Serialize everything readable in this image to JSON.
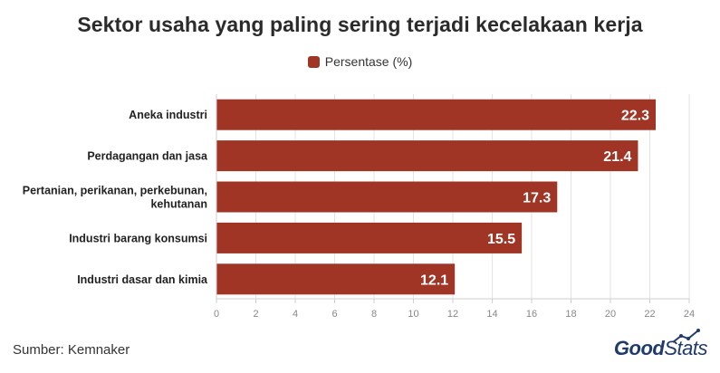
{
  "colors": {
    "bar": "#a03526",
    "grid": "#e3e3e3",
    "axis": "#cfcfcf",
    "tick": "#888888"
  },
  "brand": {
    "logo_good": "Good",
    "logo_stats": "Stats",
    "icon": "trend-chart-icon"
  },
  "source_text": "Sumber: Kemnaker",
  "chart_data": {
    "type": "bar",
    "orientation": "horizontal",
    "title": "Sektor usaha yang paling sering terjadi kecelakaan kerja",
    "legend": {
      "placement": "top-center"
    },
    "categories": [
      "Aneka industri",
      "Perdagangan dan jasa",
      "Pertanian, perikanan, perkebunan, kehutanan",
      "Industri barang konsumsi",
      "Industri dasar dan kimia"
    ],
    "series": [
      {
        "name": "Persentase (%)",
        "values": [
          22.3,
          21.4,
          17.3,
          15.5,
          12.1
        ]
      }
    ],
    "xlim": [
      0,
      24
    ],
    "xticks": [
      0,
      2,
      4,
      6,
      8,
      10,
      12,
      14,
      16,
      18,
      20,
      22,
      24
    ],
    "grid": true
  }
}
